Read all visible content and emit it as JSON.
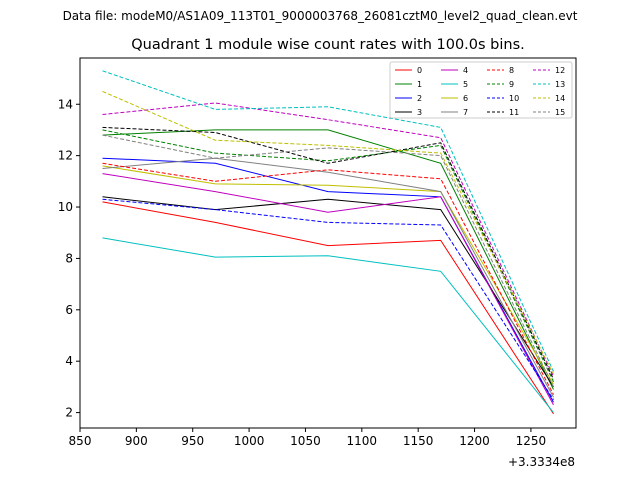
{
  "suptitle": "Data file: modeM0/AS1A09_113T01_9000003768_26081cztM0_level2_quad_clean.evt",
  "chart_data": {
    "type": "line",
    "title": "Quadrant 1 module wise count rates with 100.0s bins.",
    "xlabel": "",
    "ylabel": "",
    "x_offset_label": "+3.3334e8",
    "x": [
      870,
      970,
      1070,
      1170,
      1270
    ],
    "xlim": [
      850,
      1290
    ],
    "ylim": [
      1.4,
      15.8
    ],
    "xticks": [
      850,
      900,
      950,
      1000,
      1050,
      1100,
      1150,
      1200,
      1250
    ],
    "yticks": [
      2,
      4,
      6,
      8,
      10,
      12,
      14
    ],
    "legend_position": "top-right",
    "series": [
      {
        "name": "0",
        "color": "#ff0000",
        "dash": "solid",
        "values": [
          10.2,
          9.4,
          8.5,
          8.7,
          1.95
        ]
      },
      {
        "name": "1",
        "color": "#008000",
        "dash": "solid",
        "values": [
          12.8,
          13.0,
          13.0,
          11.7,
          2.9
        ]
      },
      {
        "name": "2",
        "color": "#0000ff",
        "dash": "solid",
        "values": [
          11.9,
          11.7,
          10.6,
          10.4,
          2.4
        ]
      },
      {
        "name": "3",
        "color": "#000000",
        "dash": "solid",
        "values": [
          10.4,
          9.9,
          10.3,
          9.9,
          3.0
        ]
      },
      {
        "name": "4",
        "color": "#bf00bf",
        "dash": "solid",
        "values": [
          11.3,
          10.6,
          9.8,
          10.4,
          2.3
        ]
      },
      {
        "name": "5",
        "color": "#00bfbf",
        "dash": "solid",
        "values": [
          8.8,
          8.05,
          8.1,
          7.5,
          2.0
        ]
      },
      {
        "name": "6",
        "color": "#bfbf00",
        "dash": "solid",
        "values": [
          11.6,
          10.9,
          10.85,
          10.6,
          3.1
        ]
      },
      {
        "name": "7",
        "color": "#808080",
        "dash": "solid",
        "values": [
          11.5,
          11.9,
          11.35,
          10.6,
          2.6
        ]
      },
      {
        "name": "8",
        "color": "#ff0000",
        "dash": "dashed",
        "values": [
          11.7,
          11.0,
          11.45,
          11.1,
          2.7
        ]
      },
      {
        "name": "9",
        "color": "#008000",
        "dash": "dashed",
        "values": [
          13.0,
          12.1,
          11.8,
          12.4,
          3.2
        ]
      },
      {
        "name": "10",
        "color": "#0000ff",
        "dash": "dashed",
        "values": [
          10.3,
          9.9,
          9.4,
          9.3,
          2.5
        ]
      },
      {
        "name": "11",
        "color": "#000000",
        "dash": "dashed",
        "values": [
          13.1,
          12.9,
          11.7,
          12.5,
          3.3
        ]
      },
      {
        "name": "12",
        "color": "#bf00bf",
        "dash": "dashed",
        "values": [
          13.6,
          14.05,
          13.4,
          12.7,
          3.4
        ]
      },
      {
        "name": "13",
        "color": "#00bfbf",
        "dash": "dashed",
        "values": [
          15.3,
          13.8,
          13.9,
          13.1,
          3.6
        ]
      },
      {
        "name": "14",
        "color": "#bfbf00",
        "dash": "dashed",
        "values": [
          14.5,
          12.6,
          12.4,
          12.1,
          3.5
        ]
      },
      {
        "name": "15",
        "color": "#808080",
        "dash": "dashed",
        "values": [
          12.8,
          11.9,
          12.3,
          12.0,
          3.0
        ]
      }
    ]
  }
}
